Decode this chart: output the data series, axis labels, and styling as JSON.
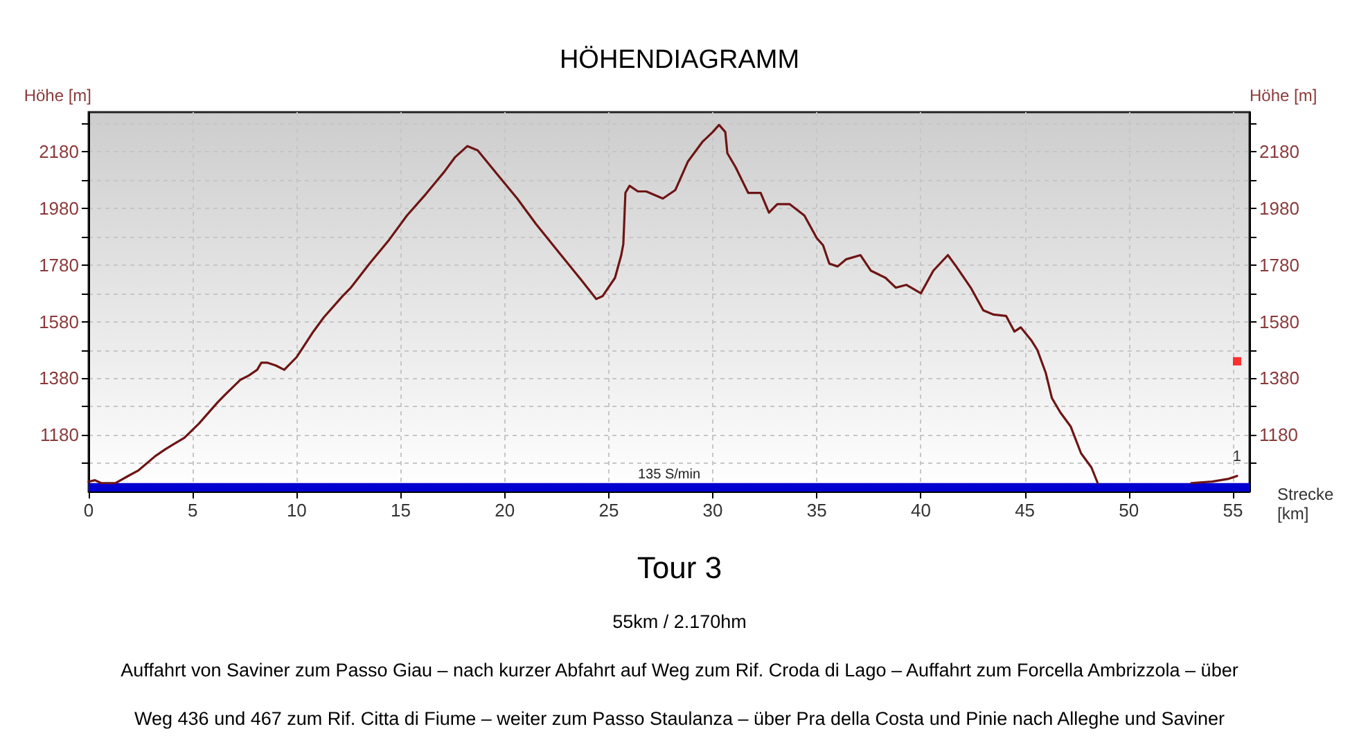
{
  "chart_data": {
    "type": "line",
    "title": "HÖHENDIAGRAMM",
    "xlabel": "Strecke [km]",
    "ylabel": "Höhe [m]",
    "y2label": "Höhe [m]",
    "annotations": [
      "Tour 3",
      "55km / 2.170hm",
      "Auffahrt von Saviner zum Passo Giau – nach kurzer Abfahrt auf Weg zum Rif. Croda di Lago – Auffahrt zum Forcella Ambrizzola – über",
      "Weg 436 und 467 zum Rif. Citta di Fiume – weiter zum Passo Staulanza – über Pra della Costa und Pinie nach Alleghe und Saviner",
      {
        "text": "1",
        "x": 55.2,
        "y": 1035
      }
    ],
    "series": [
      {
        "color": "#6e1414",
        "x": [
          0,
          0.3,
          0.6,
          1.3,
          1.9,
          2.4,
          3.2,
          3.7,
          4.6,
          5.3,
          6.2,
          6.6,
          7.3,
          7.7,
          8.1,
          8.3,
          8.6,
          9.0,
          9.4,
          10.0,
          10.8,
          11.3,
          12.2,
          12.6,
          13.5,
          14.4,
          15.3,
          16.2,
          17.1,
          17.6,
          18.2,
          18.7,
          19.7,
          20.6,
          21.5,
          22.6,
          23.7,
          24.4,
          24.7,
          25.3,
          25.6,
          25.7,
          25.8,
          26.0,
          26.4,
          26.8,
          27.6,
          28.2,
          28.8,
          29.5,
          30.0,
          30.3,
          30.6,
          30.7,
          31.1,
          31.7,
          32.3,
          32.7,
          33.1,
          33.7,
          34.4,
          35.0,
          35.3,
          35.6,
          36.0,
          36.4,
          37.1,
          37.6,
          38.3,
          38.8,
          39.3,
          40.0,
          40.6,
          41.3,
          41.7,
          42.4,
          43.0,
          43.5,
          44.1,
          44.5,
          44.8,
          45.3,
          45.6,
          46.0,
          46.3,
          46.7,
          47.2,
          47.7,
          48.2,
          48.5,
          50.7,
          53.0,
          54.0,
          54.8,
          55.2
        ],
        "values": [
          1015,
          1020,
          1010,
          1010,
          1035,
          1055,
          1105,
          1130,
          1170,
          1220,
          1295,
          1325,
          1375,
          1390,
          1410,
          1435,
          1435,
          1425,
          1410,
          1455,
          1545,
          1595,
          1670,
          1700,
          1785,
          1865,
          1955,
          2030,
          2110,
          2160,
          2200,
          2185,
          2095,
          2015,
          1925,
          1825,
          1725,
          1660,
          1670,
          1735,
          1815,
          1855,
          2035,
          2060,
          2040,
          2040,
          2015,
          2045,
          2145,
          2215,
          2250,
          2275,
          2250,
          2175,
          2125,
          2035,
          2035,
          1965,
          1995,
          1995,
          1955,
          1875,
          1850,
          1785,
          1775,
          1800,
          1815,
          1760,
          1735,
          1700,
          1710,
          1680,
          1760,
          1815,
          1775,
          1700,
          1620,
          1605,
          1600,
          1545,
          1560,
          1515,
          1480,
          1400,
          1310,
          1260,
          1210,
          1115,
          1065,
          1010,
          null,
          1010,
          1015,
          1025,
          1035
        ]
      },
      {
        "type": "scatter",
        "marker": "square",
        "color": "#ff0000",
        "x": [
          55.2
        ],
        "values": [
          1440
        ]
      }
    ],
    "xlim": [
      0,
      55.8
    ],
    "xticks": [
      0,
      5,
      10,
      15,
      20,
      25,
      30,
      35,
      40,
      45,
      50,
      55
    ],
    "ylim": [
      980,
      2320
    ],
    "yticks": [
      {
        "value": 1080,
        "label": null
      },
      1180,
      {
        "value": 1280,
        "label": null
      },
      1380,
      {
        "value": 1480,
        "label": null
      },
      1580,
      {
        "value": 1680,
        "label": null
      },
      1780,
      {
        "value": 1880,
        "label": null
      },
      1980,
      {
        "value": 2080,
        "label": null
      },
      2180,
      {
        "value": 2280,
        "label": null
      }
    ],
    "y2lim": [
      980,
      2320
    ],
    "y2ticks": [
      {
        "value": 1080,
        "label": null
      },
      1180,
      {
        "value": 1280,
        "label": null
      },
      1380,
      {
        "value": 1480,
        "label": null
      },
      1580,
      {
        "value": 1680,
        "label": null
      },
      1780,
      {
        "value": 1880,
        "label": null
      },
      1980,
      {
        "value": 2080,
        "label": null
      },
      2180,
      {
        "value": 2280,
        "label": null
      }
    ],
    "bands": [
      {
        "axis": "y",
        "from": 980,
        "to": 1010,
        "label": "135 S/min",
        "color": "#0000d0"
      }
    ],
    "grid": true
  }
}
